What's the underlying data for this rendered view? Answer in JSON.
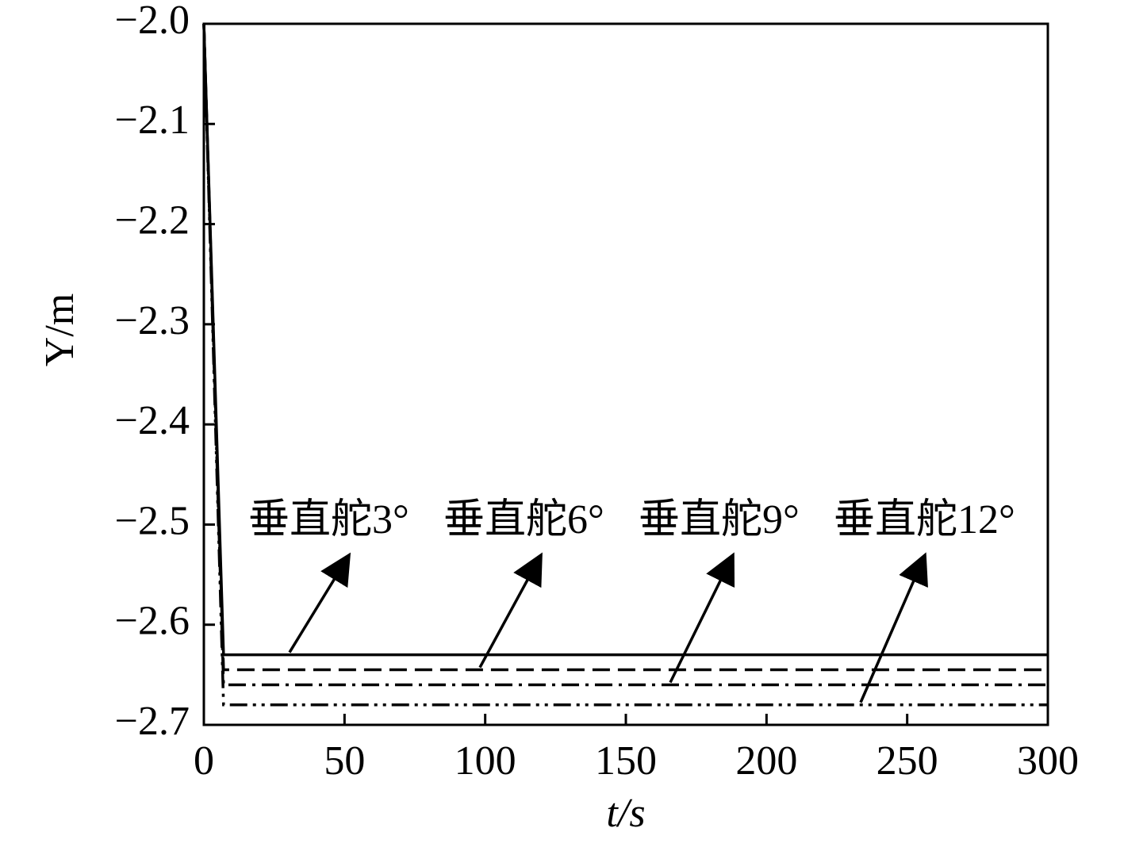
{
  "chart_data": {
    "type": "line",
    "x_label": "t/s",
    "y_label": "Y/m",
    "x": [
      0,
      7,
      300
    ],
    "series": [
      {
        "name": "垂直舵3°",
        "color": "#000000",
        "dash": "solid",
        "values": [
          -2.0,
          -2.63,
          -2.63
        ]
      },
      {
        "name": "垂直舵6°",
        "color": "#000000",
        "dash": "dashed",
        "values": [
          -2.0,
          -2.645,
          -2.645
        ]
      },
      {
        "name": "垂直舵9°",
        "color": "#000000",
        "dash": "dashdot",
        "values": [
          -2.0,
          -2.66,
          -2.66
        ]
      },
      {
        "name": "垂直舵12°",
        "color": "#000000",
        "dash": "dashdotdot",
        "values": [
          -2.0,
          -2.68,
          -2.68
        ]
      }
    ],
    "xlim": [
      0,
      300
    ],
    "xticks": [
      0,
      50,
      100,
      150,
      200,
      250,
      300
    ],
    "ylim": [
      -2.7,
      -2.0
    ],
    "yticks": [
      {
        "value": -2.0,
        "label": "−2.0"
      },
      {
        "value": -2.1,
        "label": "−2.1"
      },
      {
        "value": -2.2,
        "label": "−2.2"
      },
      {
        "value": -2.3,
        "label": "−2.3"
      },
      {
        "value": -2.4,
        "label": "−2.4"
      },
      {
        "value": -2.5,
        "label": "−2.5"
      },
      {
        "value": -2.6,
        "label": "−2.6"
      },
      {
        "value": -2.7,
        "label": "−2.7"
      }
    ],
    "grid": false
  }
}
